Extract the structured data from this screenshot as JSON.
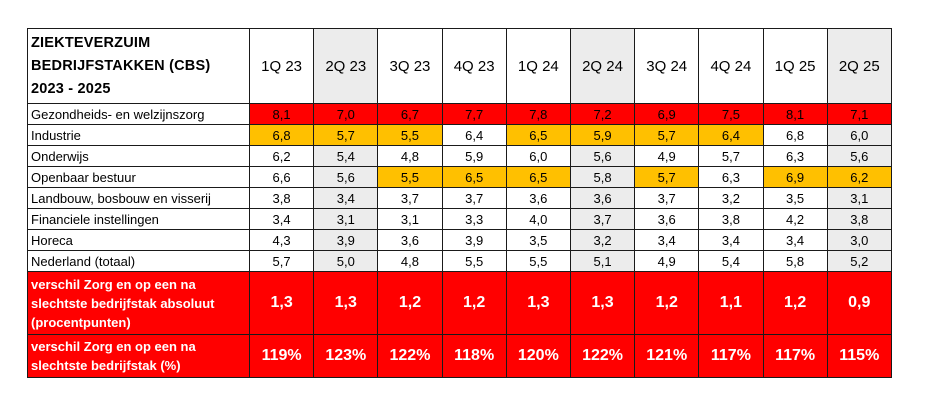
{
  "colors": {
    "red": "#ff0000",
    "orange": "#ffc000",
    "grey": "#ececec",
    "white": "#ffffff"
  },
  "table": {
    "title_lines": [
      "ZIEKTEVERZUIM",
      "BEDRIJFSTAKKEN (CBS)",
      "2023 - 2025"
    ],
    "quarters": [
      "1Q 23",
      "2Q 23",
      "3Q 23",
      "4Q 23",
      "1Q 24",
      "2Q 24",
      "3Q 24",
      "4Q 24",
      "1Q 25",
      "2Q 25"
    ],
    "grey_columns": [
      1,
      5,
      9
    ],
    "rows": [
      {
        "label": "Gezondheids- en welzijnszorg",
        "values": [
          "8,1",
          "7,0",
          "6,7",
          "7,7",
          "7,8",
          "7,2",
          "6,9",
          "7,5",
          "8,1",
          "7,1"
        ],
        "highlight": [
          "red",
          "red",
          "red",
          "red",
          "red",
          "red",
          "red",
          "red",
          "red",
          "red"
        ]
      },
      {
        "label": "Industrie",
        "values": [
          "6,8",
          "5,7",
          "5,5",
          "6,4",
          "6,5",
          "5,9",
          "5,7",
          "6,4",
          "6,8",
          "6,0"
        ],
        "highlight": [
          "orange",
          "orange",
          "orange",
          "",
          "orange",
          "orange",
          "orange",
          "orange",
          "",
          ""
        ]
      },
      {
        "label": "Onderwijs",
        "values": [
          "6,2",
          "5,4",
          "4,8",
          "5,9",
          "6,0",
          "5,6",
          "4,9",
          "5,7",
          "6,3",
          "5,6"
        ],
        "highlight": [
          "",
          "",
          "",
          "",
          "",
          "",
          "",
          "",
          "",
          ""
        ]
      },
      {
        "label": "Openbaar bestuur",
        "values": [
          "6,6",
          "5,6",
          "5,5",
          "6,5",
          "6,5",
          "5,8",
          "5,7",
          "6,3",
          "6,9",
          "6,2"
        ],
        "highlight": [
          "",
          "",
          "orange",
          "orange",
          "orange",
          "",
          "orange",
          "",
          "orange",
          "orange"
        ]
      },
      {
        "label": "Landbouw, bosbouw en visserij",
        "values": [
          "3,8",
          "3,4",
          "3,7",
          "3,7",
          "3,6",
          "3,6",
          "3,7",
          "3,2",
          "3,5",
          "3,1"
        ],
        "highlight": [
          "",
          "",
          "",
          "",
          "",
          "",
          "",
          "",
          "",
          ""
        ]
      },
      {
        "label": "Financiele instellingen",
        "values": [
          "3,4",
          "3,1",
          "3,1",
          "3,3",
          "4,0",
          "3,7",
          "3,6",
          "3,8",
          "4,2",
          "3,8"
        ],
        "highlight": [
          "",
          "",
          "",
          "",
          "",
          "",
          "",
          "",
          "",
          ""
        ]
      },
      {
        "label": "Horeca",
        "values": [
          "4,3",
          "3,9",
          "3,6",
          "3,9",
          "3,5",
          "3,2",
          "3,4",
          "3,4",
          "3,4",
          "3,0"
        ],
        "highlight": [
          "",
          "",
          "",
          "",
          "",
          "",
          "",
          "",
          "",
          ""
        ]
      },
      {
        "label": "Nederland (totaal)",
        "values": [
          "5,7",
          "5,0",
          "4,8",
          "5,5",
          "5,5",
          "5,1",
          "4,9",
          "5,4",
          "5,8",
          "5,2"
        ],
        "highlight": [
          "",
          "",
          "",
          "",
          "",
          "",
          "",
          "",
          "",
          ""
        ]
      }
    ],
    "summary_rows": [
      {
        "label": "verschil Zorg en op een na slechtste bedrijfstak absoluut (procentpunten)",
        "values": [
          "1,3",
          "1,3",
          "1,2",
          "1,2",
          "1,3",
          "1,3",
          "1,2",
          "1,1",
          "1,2",
          "0,9"
        ]
      },
      {
        "label": "verschil Zorg en op een na slechtste bedrijfstak (%)",
        "values": [
          "119%",
          "123%",
          "122%",
          "118%",
          "120%",
          "122%",
          "121%",
          "117%",
          "117%",
          "115%"
        ]
      }
    ]
  }
}
